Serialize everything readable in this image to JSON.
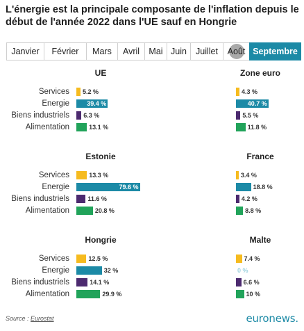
{
  "title": "L'énergie est la principale composante de l'inflation depuis le début de l'année 2022 dans l'UE sauf en Hongrie",
  "tabs": [
    "Janvier",
    "Février",
    "Mars",
    "Avril",
    "Mai",
    "Juin",
    "Juillet",
    "Août",
    "Septembre"
  ],
  "active_tab": "Septembre",
  "colors": {
    "Services": "#f6bb1f",
    "Energie": "#1c8aa6",
    "Biens industriels": "#4c2a6f",
    "Alimentation": "#21a35a"
  },
  "categories": [
    "Services",
    "Energie",
    "Biens industriels",
    "Alimentation"
  ],
  "chart_data": [
    {
      "type": "bar",
      "title": "UE",
      "categories": [
        "Services",
        "Energie",
        "Biens industriels",
        "Alimentation"
      ],
      "values": [
        5.2,
        39.4,
        6.3,
        13.1
      ],
      "labels": [
        "5.2 %",
        "39.4 %",
        "6.3 %",
        "13.1 %"
      ]
    },
    {
      "type": "bar",
      "title": "Zone euro",
      "categories": [
        "Services",
        "Energie",
        "Biens industriels",
        "Alimentation"
      ],
      "values": [
        4.3,
        40.7,
        5.5,
        11.8
      ],
      "labels": [
        "4.3 %",
        "40.7 %",
        "5.5 %",
        "11.8 %"
      ]
    },
    {
      "type": "bar",
      "title": "Estonie",
      "categories": [
        "Services",
        "Energie",
        "Biens industriels",
        "Alimentation"
      ],
      "values": [
        13.3,
        79.6,
        11.6,
        20.8
      ],
      "labels": [
        "13.3 %",
        "79.6 %",
        "11.6 %",
        "20.8 %"
      ]
    },
    {
      "type": "bar",
      "title": "France",
      "categories": [
        "Services",
        "Energie",
        "Biens industriels",
        "Alimentation"
      ],
      "values": [
        3.4,
        18.8,
        4.2,
        8.8
      ],
      "labels": [
        "3.4 %",
        "18.8 %",
        "4.2 %",
        "8.8 %"
      ]
    },
    {
      "type": "bar",
      "title": "Hongrie",
      "categories": [
        "Services",
        "Energie",
        "Biens industriels",
        "Alimentation"
      ],
      "values": [
        12.5,
        32,
        14.1,
        29.9
      ],
      "labels": [
        "12.5 %",
        "32 %",
        "14.1 %",
        "29.9 %"
      ]
    },
    {
      "type": "bar",
      "title": "Malte",
      "categories": [
        "Services",
        "Energie",
        "Biens industriels",
        "Alimentation"
      ],
      "values": [
        7.4,
        0,
        6.6,
        10
      ],
      "labels": [
        "7.4 %",
        "0 %",
        "6.6 %",
        "10 %"
      ]
    }
  ],
  "source": {
    "prefix": "Source : ",
    "name": "Eurostat"
  },
  "logo": "euronews."
}
